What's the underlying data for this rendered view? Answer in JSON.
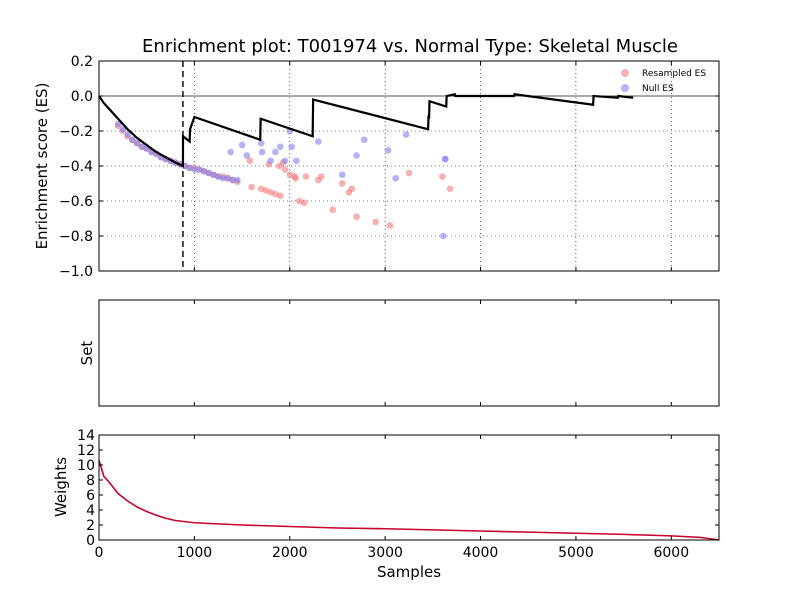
{
  "chart_data": {
    "type": "line",
    "title": "Enrichment plot: T001974 vs. Normal Type: Skeletal Muscle",
    "grid": true,
    "legend_placement": "top-right",
    "panels": [
      {
        "id": "es",
        "ylabel": "Enrichment score (ES)",
        "xlim": [
          0,
          6500
        ],
        "ylim": [
          -1.0,
          0.2
        ],
        "yticks": [
          -1.0,
          -0.8,
          -0.6,
          -0.4,
          -0.2,
          0.0,
          0.2
        ],
        "ytick_labels": [
          "−1.0",
          "−0.8",
          "−0.6",
          "−0.4",
          "−0.2",
          "0.0",
          "0.2"
        ],
        "xticks": [
          0,
          1000,
          2000,
          3000,
          4000,
          5000,
          6000
        ],
        "vline_x": 880,
        "legend": [
          {
            "name": "Resampled ES",
            "color": "#f47a7a"
          },
          {
            "name": "Null ES",
            "color": "#8080f0"
          }
        ],
        "es_curve": {
          "color": "#000000",
          "x": [
            0,
            50,
            100,
            200,
            300,
            400,
            500,
            600,
            700,
            800,
            880,
            881,
            950,
            955,
            1000,
            1690,
            1695,
            2240,
            2245,
            3450,
            3455,
            3460,
            3465,
            3640,
            3645,
            3730,
            3735,
            4350,
            4355,
            5180,
            5185,
            5440,
            5445,
            5600
          ],
          "y": [
            0.0,
            -0.04,
            -0.07,
            -0.13,
            -0.19,
            -0.24,
            -0.28,
            -0.32,
            -0.35,
            -0.38,
            -0.4,
            -0.23,
            -0.26,
            -0.19,
            -0.12,
            -0.25,
            -0.13,
            -0.23,
            -0.02,
            -0.19,
            -0.11,
            -0.13,
            -0.03,
            -0.06,
            0.0,
            0.01,
            0.0,
            -0.0,
            0.01,
            -0.05,
            0.0,
            -0.01,
            0.0,
            -0.01
          ]
        },
        "resampled_es": {
          "color": "#f47a7a",
          "x": [
            200,
            250,
            300,
            350,
            400,
            450,
            500,
            550,
            600,
            650,
            700,
            750,
            800,
            850,
            900,
            950,
            1000,
            1050,
            1100,
            1150,
            1200,
            1250,
            1300,
            1350,
            1400,
            1450,
            1600,
            1700,
            1750,
            1800,
            1850,
            1900,
            1950,
            2000,
            2050,
            2100,
            2150,
            2300,
            2450,
            2550,
            2650,
            2700,
            2900,
            3050,
            3250,
            3600,
            3680,
            1580,
            1780,
            1890,
            1930,
            2060,
            2170,
            2330,
            2620
          ],
          "y": [
            -0.17,
            -0.2,
            -0.23,
            -0.25,
            -0.27,
            -0.29,
            -0.3,
            -0.32,
            -0.33,
            -0.35,
            -0.36,
            -0.37,
            -0.38,
            -0.39,
            -0.4,
            -0.41,
            -0.41,
            -0.42,
            -0.43,
            -0.44,
            -0.45,
            -0.46,
            -0.46,
            -0.47,
            -0.48,
            -0.49,
            -0.52,
            -0.53,
            -0.54,
            -0.55,
            -0.56,
            -0.57,
            -0.42,
            -0.45,
            -0.46,
            -0.6,
            -0.61,
            -0.48,
            -0.65,
            -0.5,
            -0.53,
            -0.69,
            -0.72,
            -0.74,
            -0.44,
            -0.46,
            -0.53,
            -0.37,
            -0.39,
            -0.4,
            -0.38,
            -0.47,
            -0.46,
            -0.46,
            -0.55
          ]
        },
        "null_es": {
          "color": "#8080f0",
          "x": [
            200,
            250,
            300,
            350,
            400,
            450,
            500,
            550,
            600,
            650,
            700,
            750,
            800,
            850,
            900,
            950,
            1000,
            1050,
            1100,
            1150,
            1200,
            1250,
            1300,
            1350,
            1400,
            1450,
            1380,
            1500,
            1550,
            1700,
            1710,
            1800,
            1850,
            1900,
            1950,
            2000,
            2020,
            2070,
            2300,
            2550,
            2700,
            2780,
            3030,
            3110,
            3220,
            3630,
            3610,
            3630
          ],
          "y": [
            -0.16,
            -0.19,
            -0.22,
            -0.25,
            -0.27,
            -0.29,
            -0.3,
            -0.32,
            -0.33,
            -0.35,
            -0.36,
            -0.37,
            -0.38,
            -0.39,
            -0.4,
            -0.41,
            -0.42,
            -0.42,
            -0.43,
            -0.44,
            -0.45,
            -0.46,
            -0.47,
            -0.47,
            -0.48,
            -0.48,
            -0.32,
            -0.28,
            -0.34,
            -0.27,
            -0.32,
            -0.37,
            -0.32,
            -0.29,
            -0.37,
            -0.2,
            -0.29,
            -0.37,
            -0.26,
            -0.45,
            -0.34,
            -0.25,
            -0.31,
            -0.47,
            -0.22,
            -0.36,
            -0.8,
            -0.36
          ]
        }
      },
      {
        "id": "set",
        "ylabel": "Set",
        "xlim": [
          0,
          6500
        ],
        "ylim": [
          0,
          1
        ]
      },
      {
        "id": "weights",
        "ylabel": "Weights",
        "xlabel": "Samples",
        "xlim": [
          0,
          6500
        ],
        "ylim": [
          0,
          14
        ],
        "yticks": [
          0,
          2,
          4,
          6,
          8,
          10,
          12,
          14
        ],
        "xticks": [
          0,
          1000,
          2000,
          3000,
          4000,
          5000,
          6000
        ],
        "line_color": "#c8002c",
        "x": [
          0,
          20,
          50,
          100,
          200,
          300,
          400,
          500,
          600,
          700,
          800,
          1000,
          1500,
          2000,
          2500,
          3000,
          3500,
          4000,
          4500,
          5000,
          5500,
          6000,
          6300,
          6450,
          6500
        ],
        "y": [
          10.6,
          9.8,
          8.5,
          7.8,
          6.2,
          5.2,
          4.4,
          3.8,
          3.3,
          2.9,
          2.6,
          2.3,
          2.0,
          1.8,
          1.6,
          1.5,
          1.35,
          1.2,
          1.05,
          0.9,
          0.75,
          0.55,
          0.35,
          0.1,
          0.0
        ]
      }
    ]
  }
}
